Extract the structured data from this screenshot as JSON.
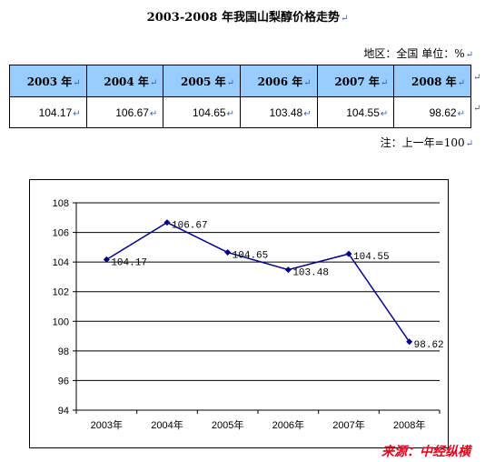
{
  "title": "2003-2008 年我国山梨醇价格走势",
  "meta_text": "地区：全国 单位：%",
  "note": "注：上一年=100",
  "source": "来源：中经纵横",
  "table": {
    "headers": [
      "2003 年",
      "2004 年",
      "2005 年",
      "2006 年",
      "2007 年",
      "2008 年"
    ],
    "values": [
      "104.17",
      "106.67",
      "104.65",
      "103.48",
      "104.55",
      "98.62"
    ]
  },
  "chart_data": {
    "type": "line",
    "categories": [
      "2003年",
      "2004年",
      "2005年",
      "2006年",
      "2007年",
      "2008年"
    ],
    "values": [
      104.17,
      106.67,
      104.65,
      103.48,
      104.55,
      98.62
    ],
    "data_labels": [
      "104.17",
      "106.67",
      "104.65",
      "103.48",
      "104.55",
      "98.62"
    ],
    "ylim": [
      94,
      108
    ],
    "yticks": [
      "94",
      "96",
      "98",
      "100",
      "102",
      "104",
      "106",
      "108"
    ],
    "grid": true,
    "series_color": "#00008b"
  }
}
